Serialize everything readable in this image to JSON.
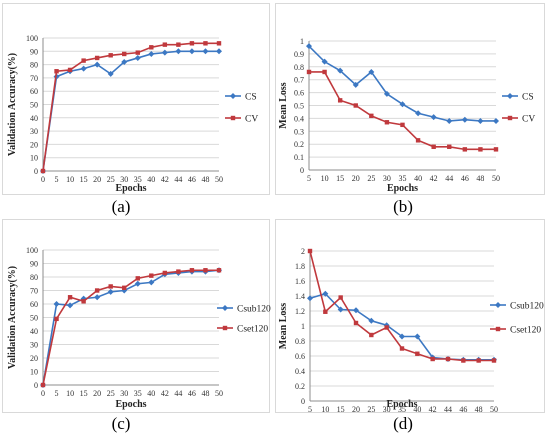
{
  "captions": [
    "(a)",
    "(b)",
    "(c)",
    "(d)"
  ],
  "colors": {
    "blue": "#3c78c3",
    "red": "#c0393d",
    "grid": "#d9d9d9",
    "axis": "#8c8c8c"
  },
  "chart_data": [
    {
      "type": "line",
      "xlabel": "Epochs",
      "ylabel": "Validation Accuracy(%)",
      "categories": [
        "0",
        "5",
        "10",
        "15",
        "20",
        "25",
        "30",
        "35",
        "40",
        "42",
        "44",
        "46",
        "48",
        "50"
      ],
      "yticks": [
        "0",
        "10",
        "20",
        "30",
        "40",
        "50",
        "60",
        "70",
        "80",
        "90",
        "100"
      ],
      "ylim": [
        0,
        100
      ],
      "grid": true,
      "legend_position": "right",
      "series": [
        {
          "name": "CS",
          "color": "#3c78c3",
          "marker": "diamond",
          "values": [
            0,
            71,
            75,
            77,
            80,
            73,
            82,
            85,
            88,
            89,
            90,
            90,
            90,
            90
          ]
        },
        {
          "name": "CV",
          "color": "#c0393d",
          "marker": "square",
          "values": [
            0,
            75,
            76,
            83,
            85,
            87,
            88,
            89,
            93,
            95,
            95,
            96,
            96,
            96
          ]
        }
      ]
    },
    {
      "type": "line",
      "xlabel": "Epochs",
      "ylabel": "Mean Loss",
      "categories": [
        "5",
        "10",
        "15",
        "20",
        "25",
        "30",
        "35",
        "40",
        "42",
        "44",
        "46",
        "48",
        "50"
      ],
      "yticks": [
        "0",
        "0.1",
        "0.2",
        "0.3",
        "0.4",
        "0.5",
        "0.6",
        "0.7",
        "0.8",
        "0.9",
        "1"
      ],
      "ylim": [
        0,
        1
      ],
      "grid": true,
      "legend_position": "right",
      "series": [
        {
          "name": "CS",
          "color": "#3c78c3",
          "marker": "diamond",
          "values": [
            0.96,
            0.84,
            0.77,
            0.66,
            0.76,
            0.59,
            0.51,
            0.44,
            0.41,
            0.38,
            0.39,
            0.38,
            0.38
          ]
        },
        {
          "name": "CV",
          "color": "#c0393d",
          "marker": "square",
          "values": [
            0.76,
            0.76,
            0.54,
            0.5,
            0.42,
            0.37,
            0.35,
            0.23,
            0.18,
            0.18,
            0.16,
            0.16,
            0.16
          ]
        }
      ]
    },
    {
      "type": "line",
      "xlabel": "Epochs",
      "ylabel": "Validation Accuracy(%)",
      "categories": [
        "0",
        "5",
        "10",
        "15",
        "20",
        "25",
        "30",
        "35",
        "40",
        "42",
        "44",
        "46",
        "48",
        "50"
      ],
      "yticks": [
        "0",
        "10",
        "20",
        "30",
        "40",
        "50",
        "60",
        "70",
        "80",
        "90",
        "100"
      ],
      "ylim": [
        0,
        100
      ],
      "grid": true,
      "legend_position": "right",
      "series": [
        {
          "name": "Csub120",
          "color": "#3c78c3",
          "marker": "diamond",
          "values": [
            0,
            60,
            59,
            64,
            65,
            69,
            70,
            75,
            76,
            82,
            83,
            84,
            84,
            85
          ]
        },
        {
          "name": "Cset120",
          "color": "#c0393d",
          "marker": "square",
          "values": [
            0,
            49,
            65,
            62,
            70,
            73,
            72,
            79,
            81,
            83,
            84,
            85,
            85,
            85
          ]
        }
      ]
    },
    {
      "type": "line",
      "xlabel": "Epochs",
      "ylabel": "Mean Loss",
      "categories": [
        "5",
        "10",
        "15",
        "20",
        "25",
        "30",
        "35",
        "40",
        "42",
        "44",
        "46",
        "48",
        "50"
      ],
      "yticks": [
        "0",
        "0.2",
        "0.4",
        "0.6",
        "0.8",
        "1",
        "1.2",
        "1.4",
        "1.6",
        "1.8",
        "2"
      ],
      "ylim": [
        0,
        2
      ],
      "grid": true,
      "legend_position": "right",
      "series": [
        {
          "name": "Csub120",
          "color": "#3c78c3",
          "marker": "diamond",
          "values": [
            1.37,
            1.43,
            1.22,
            1.21,
            1.07,
            1.01,
            0.86,
            0.86,
            0.58,
            0.56,
            0.55,
            0.55,
            0.55
          ]
        },
        {
          "name": "Cset120",
          "color": "#c0393d",
          "marker": "square",
          "values": [
            2.0,
            1.19,
            1.38,
            1.04,
            0.88,
            0.98,
            0.7,
            0.63,
            0.56,
            0.56,
            0.54,
            0.54,
            0.54
          ]
        }
      ]
    }
  ]
}
